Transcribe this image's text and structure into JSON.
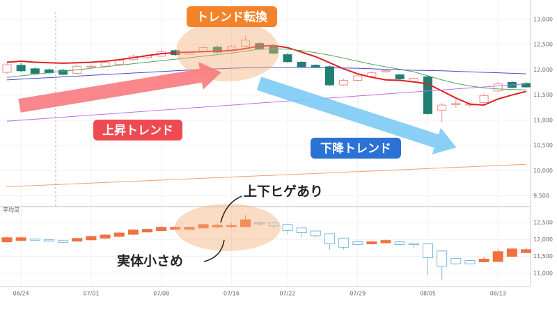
{
  "chart_data": [
    {
      "type": "candlestick",
      "annotations": [
        "トレンド転換",
        "上昇トレンド",
        "下降トレンド"
      ],
      "open": [
        11950,
        12090,
        12020,
        12000,
        11990,
        11930,
        12060,
        12070,
        12110,
        12200,
        12240,
        12270,
        12380,
        12310,
        12370,
        12450,
        12400,
        12470,
        12520,
        12480,
        12300,
        12150,
        12090,
        12060,
        11700,
        11790,
        11870,
        11960,
        11900,
        11760,
        11860,
        11200,
        11310,
        11300,
        11350,
        11580,
        11750,
        11730
      ],
      "high": [
        12130,
        12140,
        12050,
        12030,
        12020,
        12100,
        12100,
        12180,
        12220,
        12300,
        12310,
        12390,
        12400,
        12380,
        12470,
        12480,
        12490,
        12680,
        12550,
        12500,
        12330,
        12170,
        12110,
        12080,
        11820,
        11900,
        11970,
        12010,
        11920,
        11850,
        11880,
        11340,
        11400,
        11360,
        11530,
        11760,
        11780,
        11760
      ],
      "low": [
        11920,
        11960,
        11910,
        11920,
        11890,
        11910,
        12040,
        12050,
        12090,
        12180,
        12220,
        12250,
        12280,
        12290,
        12350,
        12330,
        12380,
        12450,
        12390,
        12310,
        12140,
        12040,
        12040,
        11680,
        11680,
        11770,
        11850,
        11940,
        11800,
        11740,
        11110,
        10960,
        11250,
        11260,
        11330,
        11560,
        11630,
        11640
      ],
      "close": [
        12100,
        11980,
        11930,
        11940,
        11910,
        12070,
        12070,
        12150,
        12190,
        12270,
        12280,
        12360,
        12300,
        12350,
        12440,
        12350,
        12460,
        12590,
        12410,
        12330,
        12160,
        12060,
        12060,
        11700,
        11790,
        11880,
        11940,
        11980,
        11820,
        11830,
        11130,
        11300,
        11330,
        11320,
        11490,
        11720,
        11650,
        11660
      ],
      "up_color": "#f08a8a",
      "down_color": "#1f7f72",
      "lines": [
        {
          "color": "#e02020",
          "values": [
            12150,
            12170,
            12150,
            12140,
            12130,
            12140,
            12150,
            12170,
            12200,
            12240,
            12280,
            12320,
            12340,
            12350,
            12360,
            12370,
            12380,
            12420,
            12470,
            12480,
            12440,
            12350,
            12260,
            12140,
            12020,
            11920,
            11850,
            11800,
            11790,
            11760,
            11720,
            11580,
            11440,
            11320,
            11300,
            11420,
            11500,
            11570
          ]
        },
        {
          "color": "#5aa05a",
          "values": [
            11850,
            11880,
            11910,
            11940,
            11970,
            12000,
            12030,
            12060,
            12090,
            12120,
            12150,
            12180,
            12210,
            12240,
            12270,
            12300,
            12330,
            12370,
            12410,
            12420,
            12410,
            12380,
            12340,
            12290,
            12230,
            12170,
            12110,
            12060,
            12010,
            11960,
            11880,
            11800,
            11730,
            11680,
            11640,
            11620,
            11610,
            11600
          ]
        },
        {
          "color": "#4a4ad0",
          "values": [
            11800,
            11815,
            11830,
            11845,
            11860,
            11875,
            11890,
            11905,
            11920,
            11935,
            11950,
            11965,
            11980,
            11995,
            12010,
            12020,
            12030,
            12040,
            12045,
            12050,
            12050,
            12050,
            12045,
            12040,
            12035,
            12030,
            12020,
            12010,
            12000,
            11990,
            11985,
            11980,
            11970,
            11960,
            11950,
            11940,
            11930,
            11920
          ]
        },
        {
          "color": "#c070e0",
          "values": [
            10980,
            11000,
            11020,
            11040,
            11060,
            11080,
            11100,
            11120,
            11140,
            11160,
            11180,
            11200,
            11220,
            11240,
            11260,
            11280,
            11300,
            11320,
            11340,
            11360,
            11380,
            11400,
            11420,
            11440,
            11460,
            11480,
            11500,
            11520,
            11540,
            11560,
            11580,
            11600,
            11620,
            11640,
            11660,
            11680,
            11700,
            11720
          ]
        },
        {
          "color": "#f0a070",
          "values": [
            9680,
            9692,
            9704,
            9716,
            9728,
            9740,
            9752,
            9764,
            9776,
            9788,
            9800,
            9812,
            9824,
            9836,
            9848,
            9860,
            9872,
            9884,
            9896,
            9908,
            9920,
            9932,
            9944,
            9956,
            9968,
            9980,
            9992,
            10004,
            10016,
            10028,
            10040,
            10052,
            10064,
            10076,
            10088,
            10100,
            10112,
            10124
          ]
        }
      ],
      "ylim": [
        9300,
        13150
      ],
      "yticks": [
        {
          "value": 13000,
          "label": "13,000"
        },
        {
          "value": 12500,
          "label": "12,500"
        },
        {
          "value": 12000,
          "label": "12,000"
        },
        {
          "value": 11500,
          "label": "11,500"
        },
        {
          "value": 11000,
          "label": "11,000"
        },
        {
          "value": 10500,
          "label": "10,500"
        },
        {
          "value": 10000,
          "label": "10,000"
        },
        {
          "value": 9500,
          "label": "9,500"
        }
      ],
      "grid": true
    },
    {
      "type": "candlestick",
      "title": "平均足",
      "annotations": [
        "上下ヒゲあり",
        "実体小さめ"
      ],
      "categories": [
        null,
        "06/24",
        null,
        null,
        null,
        null,
        "07/01",
        null,
        null,
        null,
        null,
        "07/08",
        null,
        null,
        null,
        null,
        "07/16",
        null,
        null,
        null,
        "07/22",
        null,
        null,
        null,
        null,
        "07/29",
        null,
        null,
        null,
        null,
        "08/05",
        null,
        null,
        null,
        null,
        "08/13",
        null,
        null
      ],
      "open": [
        11930,
        11970,
        12010,
        11990,
        11970,
        11950,
        11990,
        12040,
        12090,
        12150,
        12220,
        12260,
        12300,
        12300,
        12340,
        12370,
        12380,
        12380,
        12500,
        12490,
        12440,
        12340,
        12250,
        12170,
        12040,
        11930,
        11870,
        11900,
        11930,
        11890,
        11870,
        11660,
        11440,
        11380,
        11340,
        11350,
        11500,
        11610
      ],
      "high": [
        12080,
        12080,
        12040,
        12010,
        11990,
        12060,
        12110,
        12160,
        12210,
        12300,
        12320,
        12380,
        12390,
        12380,
        12460,
        12470,
        12480,
        12720,
        12540,
        12510,
        12460,
        12350,
        12260,
        12180,
        12050,
        11940,
        11960,
        12000,
        11960,
        11900,
        11880,
        11670,
        11450,
        11390,
        11490,
        11720,
        11760,
        11760
      ],
      "low": [
        11910,
        11950,
        11950,
        11930,
        11890,
        11930,
        11970,
        12020,
        12070,
        12130,
        12200,
        12240,
        12280,
        12280,
        12320,
        12340,
        12340,
        12360,
        12400,
        12330,
        12160,
        12060,
        12060,
        11700,
        11700,
        11830,
        11850,
        11880,
        11820,
        11760,
        10960,
        10800,
        11250,
        11260,
        11330,
        11330,
        11480,
        11600
      ],
      "close": [
        12050,
        12050,
        11970,
        11950,
        11910,
        12030,
        12090,
        12130,
        12190,
        12280,
        12300,
        12360,
        12360,
        12360,
        12440,
        12420,
        12410,
        12580,
        12460,
        12400,
        12260,
        12200,
        12110,
        11870,
        11770,
        11850,
        11930,
        11970,
        11850,
        11850,
        11460,
        11210,
        11280,
        11280,
        11420,
        11640,
        11720,
        11700
      ],
      "up_color": "#f07040",
      "down_color": "#7ab8dd",
      "ylim": [
        10650,
        12950
      ],
      "yticks": [
        {
          "value": 12500,
          "label": "12,500"
        },
        {
          "value": 12000,
          "label": "12,000"
        },
        {
          "value": 11500,
          "label": "11,500"
        },
        {
          "value": 11000,
          "label": "11,000"
        }
      ],
      "grid": true
    }
  ]
}
